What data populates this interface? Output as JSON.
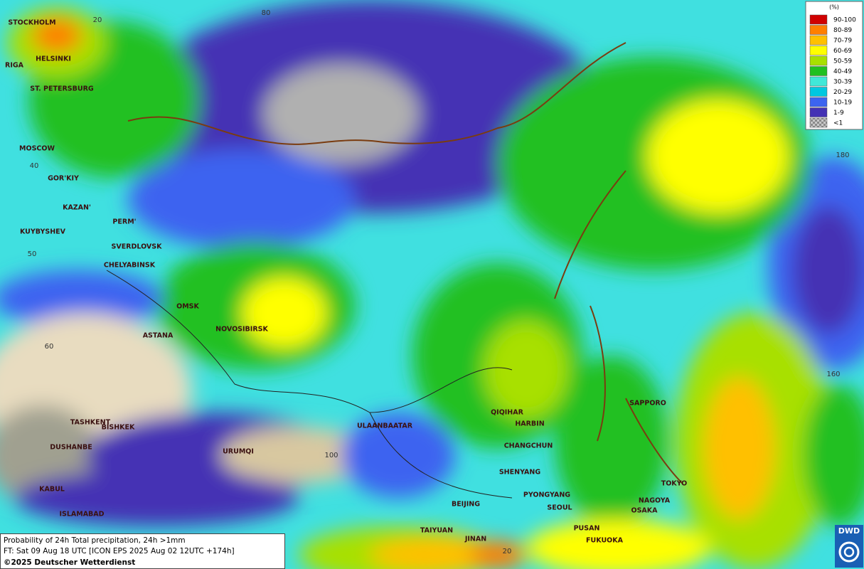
{
  "legend": {
    "title": "(%)",
    "items": [
      {
        "label": "90-100",
        "color": "#d00000"
      },
      {
        "label": "80-89",
        "color": "#ff7f00"
      },
      {
        "label": "70-79",
        "color": "#ffc000"
      },
      {
        "label": "60-69",
        "color": "#ffff00"
      },
      {
        "label": "50-59",
        "color": "#a8e000"
      },
      {
        "label": "40-49",
        "color": "#20c020"
      },
      {
        "label": "30-39",
        "color": "#40e8d8"
      },
      {
        "label": "20-29",
        "color": "#00c8e0"
      },
      {
        "label": "10-19",
        "color": "#3c64f0"
      },
      {
        "label": "1-9",
        "color": "#4432b4"
      },
      {
        "label": "<1",
        "color": "#a0a0a0"
      }
    ]
  },
  "cities": [
    "STOCKHOLM",
    "HELSINKI",
    "RIGA",
    "ST. PETERSBURG",
    "MOSCOW",
    "GOR'KIY",
    "KAZAN'",
    "PERM'",
    "KUYBYSHEV",
    "SVERDLOVSK",
    "CHELYABINSK",
    "OMSK",
    "ASTANA",
    "NOVOSIBIRSK",
    "TASHKENT",
    "BISHKEK",
    "DUSHANBE",
    "URUMQI",
    "KABUL",
    "ISLAMABAD",
    "ULAANBAATAR",
    "QIQIHAR",
    "HARBIN",
    "CHANGCHUN",
    "SHENYANG",
    "PYONGYANG",
    "BEIJING",
    "SEOUL",
    "TAIYUAN",
    "JINAN",
    "PUSAN",
    "FUKUOKA",
    "SAPPORO",
    "TOKYO",
    "NAGOYA",
    "OSAKA"
  ],
  "graticule_labels": [
    "20",
    "80",
    "40",
    "180",
    "50",
    "60",
    "100",
    "160",
    "20"
  ],
  "info": {
    "line1": "Probability of 24h Total precipitation, 24h >1mm",
    "line2": "FT: Sat 09 Aug 18 UTC [ICON EPS 2025 Aug 02 12UTC +174h]",
    "copyright": "©2025 Deutscher Wetterdienst"
  },
  "logo": "DWD"
}
